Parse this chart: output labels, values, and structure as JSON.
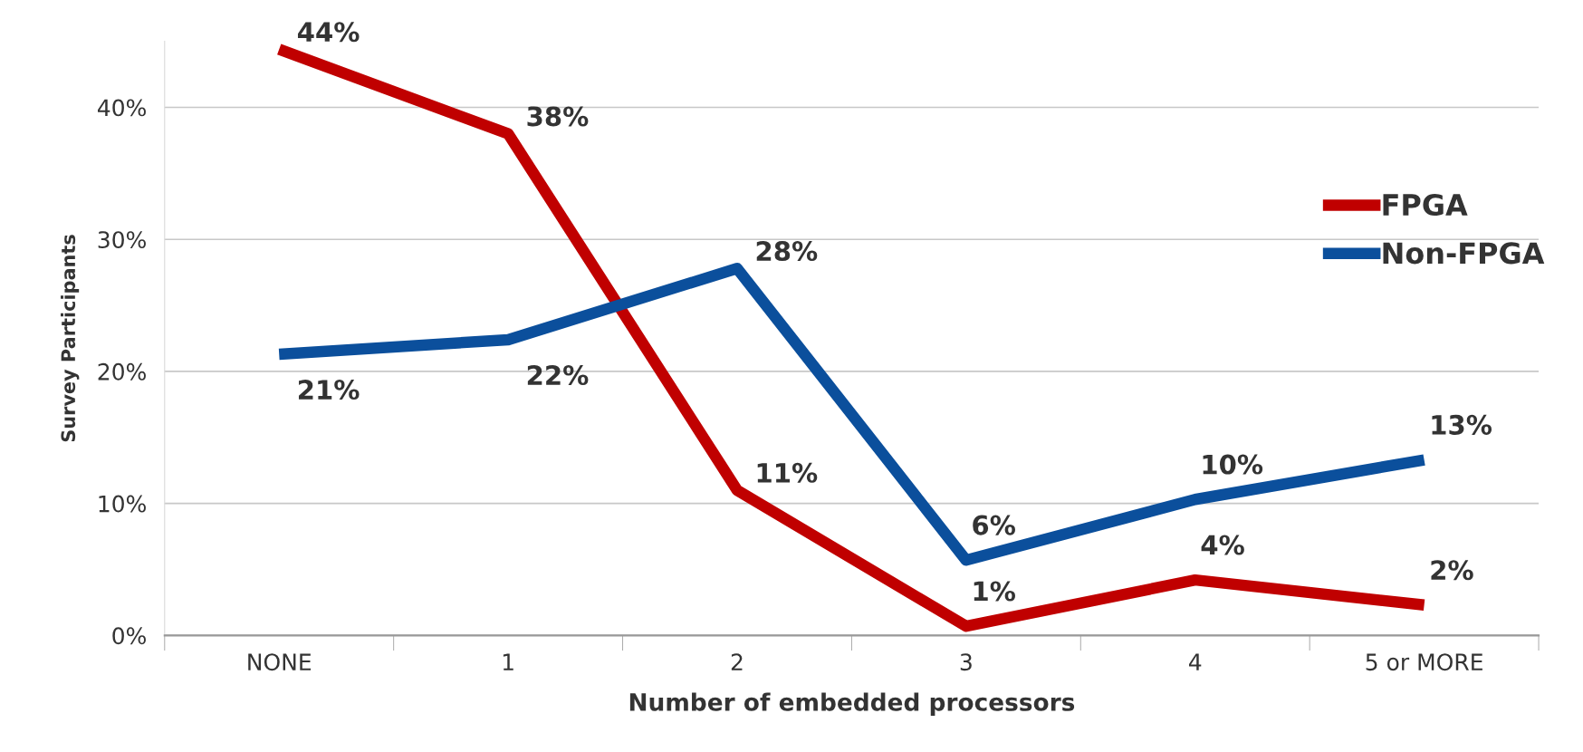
{
  "chart_data": {
    "type": "line",
    "xlabel": "Number of embedded processors",
    "ylabel": "Survey Participants",
    "categories": [
      "NONE",
      "1",
      "2",
      "3",
      "4",
      "5 or MORE"
    ],
    "series": [
      {
        "name": "FPGA",
        "color": "#c00000",
        "values": [
          44.4,
          38.0,
          11.0,
          0.7,
          4.2,
          2.3
        ],
        "value_labels": [
          "44%",
          "38%",
          "11%",
          "1%",
          "4%",
          "2%"
        ]
      },
      {
        "name": "Non-FPGA",
        "color": "#0b4f9c",
        "values": [
          21.3,
          22.4,
          27.8,
          5.7,
          10.3,
          13.3
        ],
        "value_labels": [
          "21%",
          "22%",
          "28%",
          "6%",
          "10%",
          "13%"
        ]
      }
    ],
    "ylim": [
      0,
      45
    ],
    "yticks": [
      {
        "value": 0,
        "label": "0%"
      },
      {
        "value": 10,
        "label": "10%"
      },
      {
        "value": 20,
        "label": "20%"
      },
      {
        "value": 30,
        "label": "30%"
      },
      {
        "value": 40,
        "label": "40%"
      }
    ],
    "grid": "y",
    "legend": "right",
    "marker": "none",
    "line_style": "solid"
  }
}
